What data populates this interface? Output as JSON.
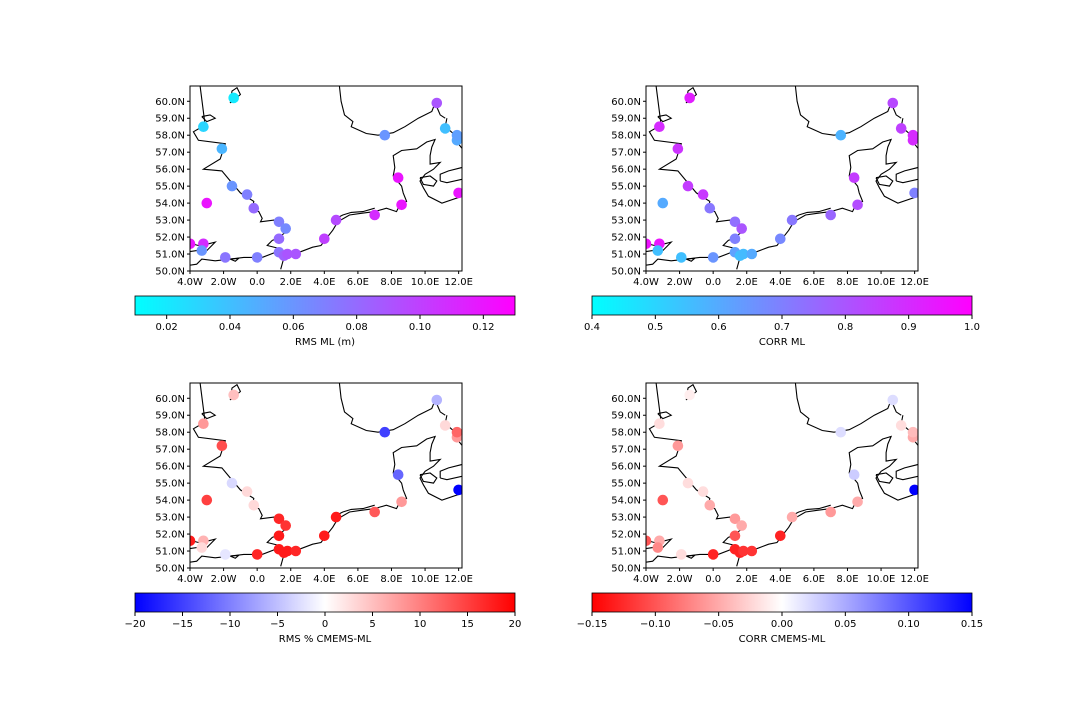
{
  "lon_ticks": [
    "4.0W",
    "2.0W",
    "0.0",
    "2.0E",
    "4.0E",
    "6.0E",
    "8.0E",
    "10.0E",
    "12.0E"
  ],
  "lat_ticks": [
    "50.0N",
    "51.0N",
    "52.0N",
    "53.0N",
    "54.0N",
    "55.0N",
    "56.0N",
    "57.0N",
    "58.0N",
    "59.0N",
    "60.0N"
  ],
  "stations": [
    {
      "lon": -1.4,
      "lat": 60.2
    },
    {
      "lon": -3.2,
      "lat": 58.5
    },
    {
      "lon": -2.1,
      "lat": 57.2
    },
    {
      "lon": -1.5,
      "lat": 55.0
    },
    {
      "lon": -0.6,
      "lat": 54.5
    },
    {
      "lon": -0.2,
      "lat": 53.7
    },
    {
      "lon": -3.0,
      "lat": 54.0
    },
    {
      "lon": -4.0,
      "lat": 51.6
    },
    {
      "lon": -3.2,
      "lat": 51.6
    },
    {
      "lon": -3.3,
      "lat": 51.2
    },
    {
      "lon": -1.9,
      "lat": 50.8
    },
    {
      "lon": 0.0,
      "lat": 50.8
    },
    {
      "lon": 1.3,
      "lat": 51.1
    },
    {
      "lon": 1.3,
      "lat": 51.9
    },
    {
      "lon": 1.3,
      "lat": 52.9
    },
    {
      "lon": 1.7,
      "lat": 52.5
    },
    {
      "lon": 1.6,
      "lat": 50.9
    },
    {
      "lon": 1.8,
      "lat": 51.0
    },
    {
      "lon": 2.3,
      "lat": 51.0
    },
    {
      "lon": 4.0,
      "lat": 51.9
    },
    {
      "lon": 4.7,
      "lat": 53.0
    },
    {
      "lon": 7.0,
      "lat": 53.3
    },
    {
      "lon": 8.6,
      "lat": 53.9
    },
    {
      "lon": 8.4,
      "lat": 55.5
    },
    {
      "lon": 7.6,
      "lat": 58.0
    },
    {
      "lon": 10.7,
      "lat": 59.9
    },
    {
      "lon": 11.2,
      "lat": 58.4
    },
    {
      "lon": 11.9,
      "lat": 57.7
    },
    {
      "lon": 11.9,
      "lat": 58.0
    },
    {
      "lon": 12.0,
      "lat": 54.6
    }
  ],
  "panels": [
    {
      "id": "rms-ml",
      "colorbar_label": "RMS ML (m)",
      "cbar_ticks": [
        "0.02",
        "0.04",
        "0.06",
        "0.08",
        "0.10",
        "0.12"
      ],
      "cbar_tick_values": [
        0.02,
        0.04,
        0.06,
        0.08,
        0.1,
        0.12
      ],
      "vmin": 0.01,
      "vmax": 0.13,
      "colors": [
        "#00ffff",
        "#ff00ff"
      ],
      "values": [
        0.02,
        0.03,
        0.045,
        0.06,
        0.07,
        0.08,
        0.12,
        0.12,
        0.11,
        0.06,
        0.075,
        0.07,
        0.075,
        0.08,
        0.07,
        0.065,
        0.085,
        0.09,
        0.09,
        0.1,
        0.095,
        0.11,
        0.12,
        0.12,
        0.06,
        0.09,
        0.04,
        0.05,
        0.055,
        0.12
      ]
    },
    {
      "id": "corr-ml",
      "colorbar_label": "CORR ML",
      "cbar_ticks": [
        "0.4",
        "0.5",
        "0.6",
        "0.7",
        "0.8",
        "0.9",
        "1.0"
      ],
      "cbar_tick_values": [
        0.4,
        0.5,
        0.6,
        0.7,
        0.8,
        0.9,
        1.0
      ],
      "vmin": 0.4,
      "vmax": 1.0,
      "colors": [
        "#00ffff",
        "#ff00ff"
      ],
      "values": [
        0.93,
        0.9,
        0.88,
        0.86,
        0.87,
        0.72,
        0.6,
        0.96,
        0.95,
        0.55,
        0.55,
        0.65,
        0.62,
        0.7,
        0.74,
        0.8,
        0.55,
        0.56,
        0.6,
        0.68,
        0.72,
        0.76,
        0.82,
        0.86,
        0.58,
        0.83,
        0.85,
        0.9,
        0.9,
        0.7
      ]
    },
    {
      "id": "rms-diff",
      "colorbar_label": "RMS % CMEMS-ML",
      "cbar_ticks": [
        "−20",
        "−15",
        "−10",
        "−5",
        "0",
        "5",
        "10",
        "15",
        "20"
      ],
      "cbar_tick_values": [
        -20,
        -15,
        -10,
        -5,
        0,
        5,
        10,
        15,
        20
      ],
      "vmin": -20,
      "vmax": 20,
      "colors": [
        "#0000ff",
        "#ffffff",
        "#ff0000"
      ],
      "values": [
        5,
        8,
        14,
        -3,
        3,
        3,
        15,
        18,
        6,
        3,
        -2,
        17,
        18,
        18,
        17,
        16,
        18,
        18,
        17,
        18,
        18,
        13,
        8,
        -12,
        -15,
        -6,
        3,
        8,
        12,
        -20
      ]
    },
    {
      "id": "corr-diff",
      "colorbar_label": "CORR CMEMS-ML",
      "cbar_ticks": [
        "−0.15",
        "−0.10",
        "−0.05",
        "0.00",
        "0.05",
        "0.10",
        "0.15"
      ],
      "cbar_tick_values": [
        -0.15,
        -0.1,
        -0.05,
        0,
        0.05,
        0.1,
        0.15
      ],
      "vmin": -0.15,
      "vmax": 0.15,
      "colors": [
        "#ff0000",
        "#ffffff",
        "#0000ff"
      ],
      "values": [
        -0.01,
        -0.02,
        -0.06,
        -0.02,
        -0.02,
        -0.05,
        -0.1,
        -0.1,
        -0.05,
        -0.07,
        -0.02,
        -0.13,
        -0.13,
        -0.1,
        -0.06,
        -0.05,
        -0.13,
        -0.12,
        -0.12,
        -0.13,
        -0.05,
        -0.06,
        -0.05,
        0.03,
        0.02,
        0.02,
        -0.02,
        -0.05,
        -0.04,
        0.15
      ]
    }
  ]
}
